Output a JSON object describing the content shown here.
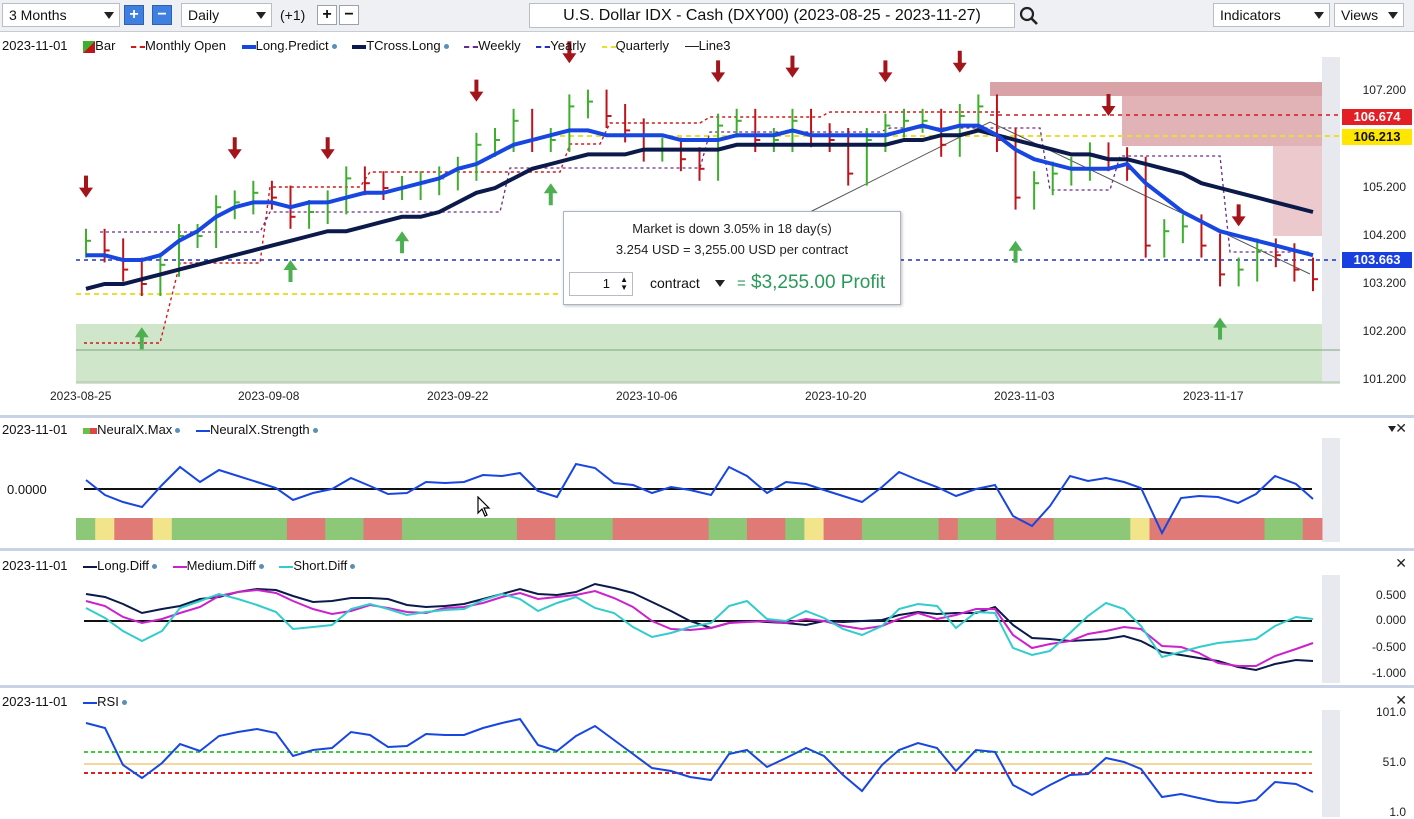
{
  "toolbar": {
    "period": "3 Months",
    "interval": "Daily",
    "offset": "(+1)",
    "title": "U.S. Dollar IDX - Cash (DXY00) (2023-08-25 - 2023-11-27)",
    "indicators": "Indicators",
    "views": "Views"
  },
  "main": {
    "date": "2023-11-01",
    "legend": [
      "Bar",
      "Monthly Open",
      "Long.Predict",
      "TCross.Long",
      "Weekly",
      "Yearly",
      "Quarterly",
      "Line3"
    ],
    "price_labels": [
      "107.200",
      "105.200",
      "104.200",
      "103.200",
      "102.200",
      "101.200"
    ],
    "tags": {
      "red": "106.674",
      "yellow": "106.213",
      "blue": "103.663"
    },
    "x_labels": [
      "2023-08-25",
      "2023-09-08",
      "2023-09-22",
      "2023-10-06",
      "2023-10-20",
      "2023-11-03",
      "2023-11-17"
    ]
  },
  "tooltip": {
    "line1": "Market is down 3.05% in 18 day(s)",
    "line2": "3.254 USD = 3,255.00 USD per contract",
    "qty": "1",
    "unit": "contract",
    "eq": "=",
    "profit": "$3,255.00 Profit"
  },
  "neural": {
    "date": "2023-11-01",
    "l1": "NeuralX.Max",
    "l2": "NeuralX.Strength",
    "zero": "0.0000"
  },
  "diff": {
    "date": "2023-11-01",
    "l1": "Long.Diff",
    "l2": "Medium.Diff",
    "l3": "Short.Diff",
    "axis": [
      "0.500",
      "0.000",
      "-0.500",
      "-1.000"
    ]
  },
  "rsi": {
    "date": "2023-11-01",
    "l1": "RSI",
    "axis": [
      "101.0",
      "51.0",
      "1.0"
    ]
  },
  "colors": {
    "up": "#3daf2c",
    "down": "#c0141b",
    "longpredict": "#1846e0",
    "tcross": "#0b1a4a",
    "magenta": "#cc22cc",
    "cyan": "#33cccc"
  },
  "chart_data": {
    "type": "line",
    "x": [
      "2023-08-25",
      "2023-08-28",
      "2023-08-29",
      "2023-08-30",
      "2023-08-31",
      "2023-09-01",
      "2023-09-04",
      "2023-09-05",
      "2023-09-06",
      "2023-09-07",
      "2023-09-08",
      "2023-09-11",
      "2023-09-12",
      "2023-09-13",
      "2023-09-14",
      "2023-09-15",
      "2023-09-18",
      "2023-09-19",
      "2023-09-20",
      "2023-09-21",
      "2023-09-22",
      "2023-09-25",
      "2023-09-26",
      "2023-09-27",
      "2023-09-28",
      "2023-09-29",
      "2023-10-02",
      "2023-10-03",
      "2023-10-04",
      "2023-10-05",
      "2023-10-06",
      "2023-10-09",
      "2023-10-10",
      "2023-10-11",
      "2023-10-12",
      "2023-10-13",
      "2023-10-16",
      "2023-10-17",
      "2023-10-18",
      "2023-10-19",
      "2023-10-20",
      "2023-10-23",
      "2023-10-24",
      "2023-10-25",
      "2023-10-26",
      "2023-10-27",
      "2023-10-30",
      "2023-10-31",
      "2023-11-01",
      "2023-11-02",
      "2023-11-03",
      "2023-11-06",
      "2023-11-07",
      "2023-11-08",
      "2023-11-09",
      "2023-11-10",
      "2023-11-13",
      "2023-11-14",
      "2023-11-15",
      "2023-11-16",
      "2023-11-17",
      "2023-11-20",
      "2023-11-21",
      "2023-11-22",
      "2023-11-23",
      "2023-11-24",
      "2023-11-27"
    ],
    "series": [
      {
        "name": "Bar",
        "values": [
          104.1,
          103.9,
          103.5,
          103.2,
          103.6,
          104.2,
          104.2,
          104.8,
          104.9,
          105.1,
          105.0,
          104.6,
          104.7,
          104.9,
          105.4,
          105.3,
          105.2,
          105.2,
          105.3,
          105.4,
          105.6,
          106.1,
          106.2,
          106.6,
          106.2,
          106.2,
          106.9,
          107.0,
          106.7,
          106.4,
          106.0,
          106.0,
          105.8,
          105.6,
          106.5,
          106.6,
          106.2,
          106.2,
          106.6,
          106.3,
          106.2,
          105.5,
          106.2,
          106.5,
          106.6,
          106.6,
          106.1,
          106.7,
          106.9,
          106.2,
          105.0,
          105.3,
          105.5,
          105.6,
          105.9,
          105.8,
          105.6,
          104.0,
          104.3,
          104.4,
          104.0,
          103.4,
          103.5,
          103.9,
          103.8,
          103.5,
          103.3
        ]
      },
      {
        "name": "Long.Predict",
        "values": [
          103.8,
          103.8,
          103.7,
          103.7,
          103.8,
          104.1,
          104.3,
          104.6,
          104.8,
          104.9,
          104.9,
          104.8,
          104.9,
          104.9,
          105.0,
          105.1,
          105.1,
          105.2,
          105.3,
          105.4,
          105.6,
          105.7,
          105.9,
          106.1,
          106.2,
          106.3,
          106.4,
          106.4,
          106.3,
          106.3,
          106.3,
          106.3,
          106.2,
          106.2,
          106.2,
          106.3,
          106.3,
          106.3,
          106.4,
          106.3,
          106.3,
          106.3,
          106.3,
          106.3,
          106.4,
          106.5,
          106.4,
          106.5,
          106.5,
          106.3,
          106.0,
          105.8,
          105.7,
          105.6,
          105.6,
          105.6,
          105.7,
          105.3,
          105.0,
          104.7,
          104.5,
          104.3,
          104.2,
          104.1,
          104.0,
          103.9,
          103.8
        ]
      },
      {
        "name": "TCross.Long",
        "values": [
          103.1,
          103.2,
          103.2,
          103.3,
          103.4,
          103.5,
          103.6,
          103.7,
          103.8,
          103.9,
          104.0,
          104.1,
          104.2,
          104.3,
          104.3,
          104.4,
          104.5,
          104.6,
          104.6,
          104.7,
          104.9,
          105.1,
          105.2,
          105.4,
          105.6,
          105.7,
          105.8,
          105.9,
          105.9,
          105.9,
          106.0,
          106.0,
          106.0,
          106.0,
          106.0,
          106.1,
          106.1,
          106.1,
          106.1,
          106.1,
          106.1,
          106.1,
          106.1,
          106.1,
          106.2,
          106.2,
          106.3,
          106.3,
          106.4,
          106.3,
          106.2,
          106.1,
          106.0,
          105.9,
          105.9,
          105.8,
          105.8,
          105.7,
          105.6,
          105.5,
          105.3,
          105.2,
          105.1,
          105.0,
          104.9,
          104.8,
          104.7
        ]
      }
    ],
    "ylim": [
      101.2,
      107.2
    ]
  }
}
